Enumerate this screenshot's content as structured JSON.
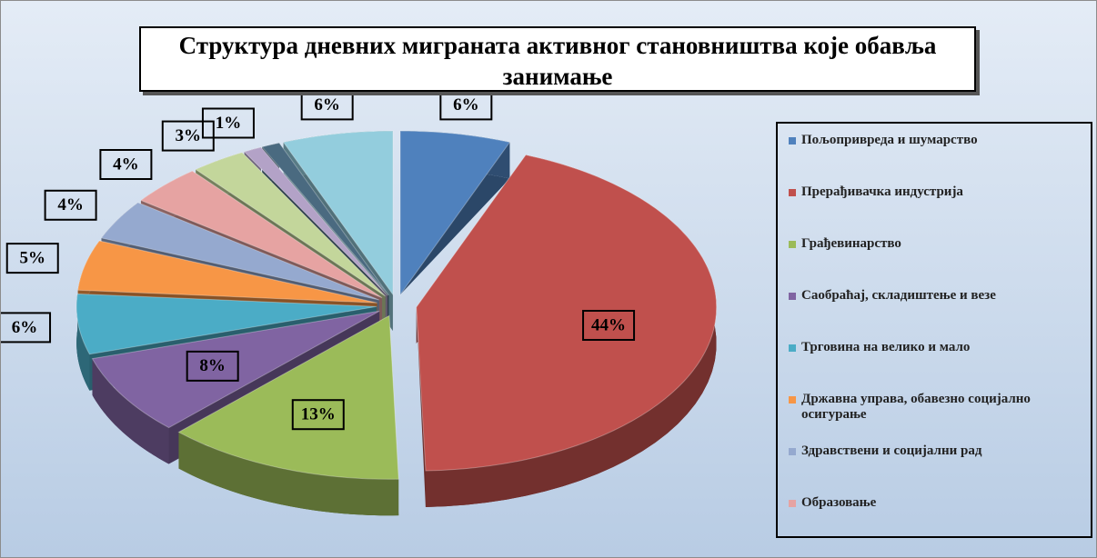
{
  "chart_data": {
    "type": "pie",
    "title": "Структура дневних миграната активног становништва које обавља занимање",
    "categories": [
      "Пољопривреда и шумарство",
      "Прерађивачка индустрија",
      "Грађевинарство",
      "Саобраћај, складиштење и везе",
      "Трговина на велико и мало",
      "Државна управа, обавезно социјално осигурање",
      "Здравствени и социјални рад",
      "Образовање",
      null,
      null,
      null,
      null
    ],
    "values": [
      6,
      44,
      13,
      8,
      6,
      5,
      4,
      4,
      3,
      1,
      1,
      6
    ],
    "value_labels": [
      "6%",
      "44%",
      "13%",
      "8%",
      "6%",
      "5%",
      "4%",
      "4%",
      "3%",
      "1%",
      null,
      "6%"
    ],
    "colors": [
      "#4f81bd",
      "#c0504d",
      "#9bbb59",
      "#8064a2",
      "#4bacc6",
      "#f79646",
      "#95a9cf",
      "#e6a3a2",
      "#c3d69b",
      "#b3a2c7",
      "#4a6a80",
      "#93cddd"
    ],
    "legend": "right"
  }
}
